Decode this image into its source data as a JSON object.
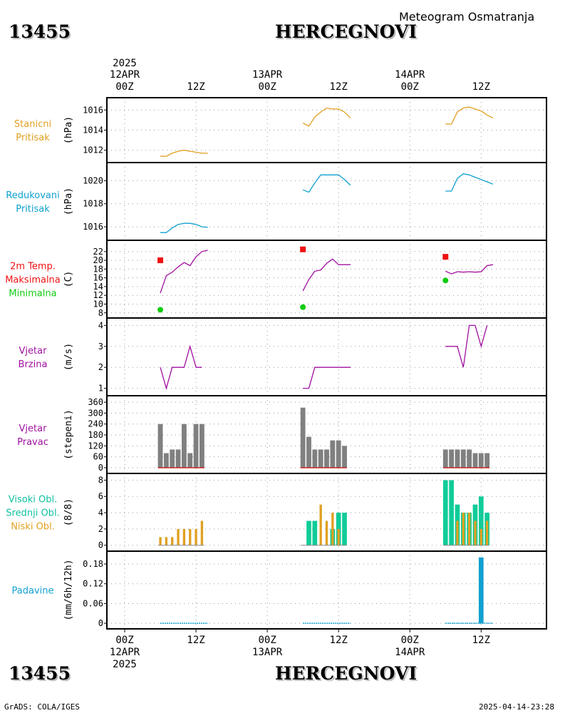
{
  "header": {
    "station_id": "13455",
    "station_name": "HERCEGNOVI",
    "subtitle": "Meteogram Osmatranja"
  },
  "footer": {
    "station_id": "13455",
    "station_name": "HERCEGNOVI",
    "credit": "GrADS: COLA/IGES",
    "timestamp": "2025-04-14-23:28"
  },
  "colors": {
    "pressure": "#e0a020",
    "reduced": "#10a0d0",
    "temp": "#a010a0",
    "tmax": "#ee1111",
    "tmin": "#11cc11",
    "wind": "#a010a0",
    "bar_grey": "#808080",
    "cloud_high": "#10c0a0",
    "cloud_mid": "#10cc88",
    "cloud_low": "#e0a020",
    "precip": "#10a0d0"
  },
  "chart_data": {
    "type": "meteogram",
    "time_axis": {
      "year": "2025",
      "top_ticks": [
        {
          "t": 0,
          "line1": "12APR",
          "line2": "00Z"
        },
        {
          "t": 12,
          "line1": "",
          "line2": "12Z"
        },
        {
          "t": 24,
          "line1": "13APR",
          "line2": "00Z"
        },
        {
          "t": 36,
          "line1": "",
          "line2": "12Z"
        },
        {
          "t": 48,
          "line1": "14APR",
          "line2": "00Z"
        },
        {
          "t": 60,
          "line1": "",
          "line2": "12Z"
        }
      ],
      "bottom_ticks": [
        {
          "t": 0,
          "line1": "00Z",
          "line2": "12APR"
        },
        {
          "t": 12,
          "line1": "12Z",
          "line2": ""
        },
        {
          "t": 24,
          "line1": "00Z",
          "line2": "13APR"
        },
        {
          "t": 36,
          "line1": "12Z",
          "line2": ""
        },
        {
          "t": 48,
          "line1": "00Z",
          "line2": "14APR"
        },
        {
          "t": 60,
          "line1": "12Z",
          "line2": ""
        }
      ],
      "range": [
        -3,
        71
      ]
    },
    "panels": [
      {
        "id": "station-pressure",
        "labels": [
          "Stanicni",
          "Pritisak"
        ],
        "label_colors": [
          "#e0a020",
          "#e0a020"
        ],
        "unit": "(hPa)",
        "ylim": [
          1011.2,
          1016.8
        ],
        "ticks": [
          1012,
          1014,
          1016
        ],
        "series": [
          {
            "color": "#e0a020",
            "points": [
              [
                6,
                1011.4
              ],
              [
                7,
                1011.4
              ],
              [
                8,
                1011.7
              ],
              [
                9,
                1011.9
              ],
              [
                10,
                1012.0
              ],
              [
                11,
                1011.9
              ],
              [
                12,
                1011.8
              ],
              [
                13,
                1011.7
              ],
              [
                14,
                1011.7
              ]
            ]
          },
          {
            "color": "#e0a020",
            "points": [
              [
                30,
                1014.7
              ],
              [
                31,
                1014.4
              ],
              [
                32,
                1015.3
              ],
              [
                33,
                1015.8
              ],
              [
                34,
                1016.2
              ],
              [
                35,
                1016.1
              ],
              [
                36,
                1016.1
              ],
              [
                37,
                1015.8
              ],
              [
                38,
                1015.2
              ]
            ]
          },
          {
            "color": "#e0a020",
            "points": [
              [
                54,
                1014.6
              ],
              [
                55,
                1014.6
              ],
              [
                56,
                1015.8
              ],
              [
                57,
                1016.2
              ],
              [
                58,
                1016.3
              ],
              [
                59,
                1016.1
              ],
              [
                60,
                1015.9
              ],
              [
                61,
                1015.5
              ],
              [
                62,
                1015.2
              ]
            ]
          }
        ]
      },
      {
        "id": "reduced-pressure",
        "labels": [
          "Redukovani",
          "Pritisak"
        ],
        "label_colors": [
          "#10a0d0",
          "#10a0d0"
        ],
        "unit": "(hPa)",
        "ylim": [
          1015.2,
          1021.2
        ],
        "ticks": [
          1016,
          1018,
          1020
        ],
        "series": [
          {
            "color": "#10a0d0",
            "points": [
              [
                6,
                1015.5
              ],
              [
                7,
                1015.5
              ],
              [
                8,
                1015.9
              ],
              [
                9,
                1016.2
              ],
              [
                10,
                1016.3
              ],
              [
                11,
                1016.3
              ],
              [
                12,
                1016.2
              ],
              [
                13,
                1016.0
              ],
              [
                14,
                1015.95
              ]
            ]
          },
          {
            "color": "#10a0d0",
            "points": [
              [
                30,
                1019.2
              ],
              [
                31,
                1019.0
              ],
              [
                32,
                1019.8
              ],
              [
                33,
                1020.5
              ],
              [
                34,
                1020.5
              ],
              [
                35,
                1020.5
              ],
              [
                36,
                1020.5
              ],
              [
                37,
                1020.1
              ],
              [
                38,
                1019.6
              ]
            ]
          },
          {
            "color": "#10a0d0",
            "points": [
              [
                54,
                1019.1
              ],
              [
                55,
                1019.1
              ],
              [
                56,
                1020.2
              ],
              [
                57,
                1020.6
              ],
              [
                58,
                1020.5
              ],
              [
                59,
                1020.3
              ],
              [
                60,
                1020.1
              ],
              [
                61,
                1019.9
              ],
              [
                62,
                1019.7
              ]
            ]
          }
        ]
      },
      {
        "id": "temperature",
        "labels": [
          "2m Temp.",
          "Maksimalna",
          "Minimalna"
        ],
        "label_colors": [
          "#ee1111",
          "#ee1111",
          "#11cc11"
        ],
        "unit": "(C)",
        "ylim": [
          7.8,
          23.6
        ],
        "ticks": [
          8,
          10,
          12,
          14,
          16,
          18,
          20,
          22
        ],
        "series": [
          {
            "color": "#a010a0",
            "points": [
              [
                6,
                12.5
              ],
              [
                7,
                16.5
              ],
              [
                8,
                17.3
              ],
              [
                9,
                18.5
              ],
              [
                10,
                19.5
              ],
              [
                11,
                18.8
              ],
              [
                12,
                20.8
              ],
              [
                13,
                22.0
              ],
              [
                14,
                22.3
              ]
            ]
          },
          {
            "color": "#a010a0",
            "points": [
              [
                30,
                13.0
              ],
              [
                31,
                15.6
              ],
              [
                32,
                17.5
              ],
              [
                33,
                17.8
              ],
              [
                34,
                19.3
              ],
              [
                35,
                20.3
              ],
              [
                36,
                19.0
              ],
              [
                37,
                19.0
              ],
              [
                38,
                19.0
              ]
            ]
          },
          {
            "color": "#a010a0",
            "points": [
              [
                54,
                17.5
              ],
              [
                55,
                16.9
              ],
              [
                56,
                17.4
              ],
              [
                57,
                17.3
              ],
              [
                58,
                17.4
              ],
              [
                59,
                17.3
              ],
              [
                60,
                17.4
              ],
              [
                61,
                18.8
              ],
              [
                62,
                19.0
              ]
            ]
          }
        ],
        "tmax": [
          [
            6,
            20.0
          ],
          [
            30,
            22.5
          ],
          [
            54,
            20.8
          ]
        ],
        "tmin": [
          [
            6,
            8.7
          ],
          [
            30,
            9.3
          ],
          [
            54,
            15.4
          ]
        ]
      },
      {
        "id": "wind-speed",
        "labels": [
          "Vjetar",
          "Brzina"
        ],
        "label_colors": [
          "#a010a0",
          "#a010a0"
        ],
        "unit": "(m/s)",
        "ylim": [
          0.85,
          4.15
        ],
        "ticks": [
          1,
          2,
          3,
          4
        ],
        "series": [
          {
            "color": "#a010a0",
            "points": [
              [
                6,
                2
              ],
              [
                7,
                1
              ],
              [
                8,
                2
              ],
              [
                9,
                2
              ],
              [
                10,
                2
              ],
              [
                11,
                3
              ],
              [
                12,
                2
              ],
              [
                13,
                2
              ]
            ]
          },
          {
            "color": "#a010a0",
            "points": [
              [
                30,
                1
              ],
              [
                31,
                1
              ],
              [
                32,
                2
              ],
              [
                33,
                2
              ],
              [
                34,
                2
              ],
              [
                35,
                2
              ],
              [
                36,
                2
              ],
              [
                37,
                2
              ],
              [
                38,
                2
              ]
            ]
          },
          {
            "color": "#a010a0",
            "points": [
              [
                54,
                3
              ],
              [
                55,
                3
              ],
              [
                56,
                3
              ],
              [
                57,
                2
              ],
              [
                58,
                4
              ],
              [
                59,
                4
              ],
              [
                60,
                3
              ],
              [
                61,
                4
              ]
            ]
          }
        ]
      },
      {
        "id": "wind-direction",
        "labels": [
          "Vjetar",
          "Pravac"
        ],
        "label_colors": [
          "#a010a0",
          "#a010a0"
        ],
        "unit": "(stepeni)",
        "ylim": [
          -8,
          372
        ],
        "ticks": [
          0,
          60,
          120,
          180,
          240,
          300,
          360
        ],
        "bars": {
          "color": "#808080",
          "width_h": 0.82,
          "values": [
            [
              6,
              240
            ],
            [
              7,
              80
            ],
            [
              8,
              100
            ],
            [
              9,
              100
            ],
            [
              10,
              240
            ],
            [
              11,
              80
            ],
            [
              12,
              240
            ],
            [
              13,
              240
            ],
            [
              30,
              330
            ],
            [
              31,
              170
            ],
            [
              32,
              100
            ],
            [
              33,
              100
            ],
            [
              34,
              100
            ],
            [
              35,
              150
            ],
            [
              36,
              150
            ],
            [
              37,
              120
            ],
            [
              54,
              100
            ],
            [
              55,
              100
            ],
            [
              56,
              100
            ],
            [
              57,
              100
            ],
            [
              58,
              100
            ],
            [
              59,
              80
            ],
            [
              60,
              80
            ],
            [
              61,
              80
            ]
          ]
        }
      },
      {
        "id": "cloud-cover",
        "labels": [
          "Visoki Obl.",
          "Srednji Obl.",
          "Niski Obl."
        ],
        "label_colors": [
          "#10c0a0",
          "#10c0a0",
          "#e0a020"
        ],
        "unit": "(8/8)",
        "ylim": [
          -0.2,
          8.3
        ],
        "ticks": [
          0,
          2,
          4,
          6,
          8
        ],
        "high": {
          "color": "#10cc99",
          "width_h": 0.8,
          "values": [
            [
              31,
              3
            ],
            [
              32,
              3
            ],
            [
              35,
              2
            ],
            [
              36,
              4
            ],
            [
              37,
              4
            ],
            [
              54,
              8
            ],
            [
              55,
              8
            ],
            [
              56,
              5
            ],
            [
              57,
              4
            ],
            [
              58,
              4
            ],
            [
              59,
              5
            ],
            [
              60,
              6
            ],
            [
              61,
              4
            ]
          ]
        },
        "low": {
          "color": "#e0a020",
          "width_h": 0.4,
          "values": [
            [
              6,
              1
            ],
            [
              7,
              1
            ],
            [
              8,
              1
            ],
            [
              9,
              2
            ],
            [
              10,
              2
            ],
            [
              11,
              2
            ],
            [
              12,
              2
            ],
            [
              13,
              3
            ],
            [
              33,
              5
            ],
            [
              34,
              3
            ],
            [
              35,
              4
            ],
            [
              36,
              2
            ],
            [
              56,
              3
            ],
            [
              57,
              4
            ],
            [
              58,
              4
            ],
            [
              59,
              3
            ],
            [
              60,
              2
            ],
            [
              61,
              3
            ]
          ]
        }
      },
      {
        "id": "precipitation",
        "labels": [
          "Padavine"
        ],
        "label_colors": [
          "#10a0d0"
        ],
        "unit": "(mm/6h/12h)",
        "ylim": [
          -0.004,
          0.206
        ],
        "ticks": [
          0,
          0.06,
          0.12,
          0.18
        ],
        "tick_labels": [
          "0",
          "0.06",
          "0.12",
          "0.18"
        ],
        "bars": {
          "color": "#10a0d0",
          "width_h": 0.8,
          "values": [
            [
              60,
              0.2
            ]
          ]
        },
        "baseline_segments": [
          [
            6,
            14
          ],
          [
            30,
            38
          ],
          [
            54,
            62
          ]
        ]
      }
    ]
  }
}
